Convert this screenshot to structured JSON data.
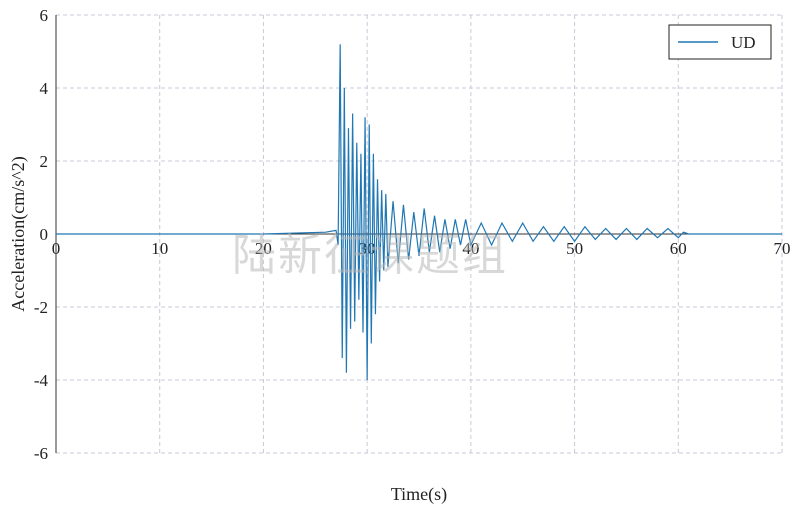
{
  "chart_data": {
    "type": "line",
    "xlabel": "Time(s)",
    "ylabel": "Acceleration(cm/s^2)",
    "xlim": [
      0,
      70
    ],
    "ylim": [
      -6,
      6
    ],
    "xticks": [
      0,
      10,
      20,
      30,
      40,
      50,
      60,
      70
    ],
    "yticks": [
      -6,
      -4,
      -2,
      0,
      2,
      4,
      6
    ],
    "grid": true,
    "legend_position": "top-right",
    "series": [
      {
        "name": "UD",
        "color": "#1f77b4",
        "x": [
          0,
          10,
          20,
          26,
          27.0,
          27.2,
          27.4,
          27.6,
          27.8,
          28.0,
          28.2,
          28.4,
          28.6,
          28.8,
          29.0,
          29.2,
          29.4,
          29.6,
          29.8,
          30.0,
          30.2,
          30.4,
          30.6,
          30.8,
          31.0,
          31.2,
          31.4,
          31.6,
          31.8,
          32.0,
          32.5,
          33.0,
          33.5,
          34.0,
          34.5,
          35.0,
          35.5,
          36.0,
          36.5,
          37.0,
          37.5,
          38.0,
          38.5,
          39.0,
          39.5,
          40.0,
          41.0,
          42.0,
          43.0,
          44.0,
          45.0,
          46.0,
          47.0,
          48.0,
          49.0,
          50.0,
          51.0,
          52.0,
          53.0,
          54.0,
          55.0,
          56.0,
          57.0,
          58.0,
          59.0,
          60.0,
          60.5,
          61,
          70
        ],
        "y": [
          0,
          0,
          0,
          0.05,
          0.1,
          -0.3,
          5.2,
          -3.4,
          4.0,
          -3.8,
          2.9,
          -2.6,
          3.3,
          -2.4,
          2.5,
          -1.8,
          2.2,
          -2.7,
          3.2,
          -4.0,
          3.0,
          -3.0,
          2.2,
          -2.2,
          1.5,
          -1.3,
          1.2,
          -1.0,
          1.1,
          -0.9,
          0.9,
          -0.8,
          0.8,
          -0.7,
          0.6,
          -0.6,
          0.7,
          -0.5,
          0.5,
          -0.5,
          0.4,
          -0.4,
          0.4,
          -0.3,
          0.4,
          -0.3,
          0.3,
          -0.3,
          0.3,
          -0.2,
          0.3,
          -0.2,
          0.2,
          -0.2,
          0.2,
          -0.2,
          0.2,
          -0.15,
          0.15,
          -0.15,
          0.15,
          -0.15,
          0.15,
          -0.1,
          0.15,
          -0.1,
          0.05,
          0,
          0
        ]
      }
    ]
  },
  "watermark": "陆新征课题组"
}
